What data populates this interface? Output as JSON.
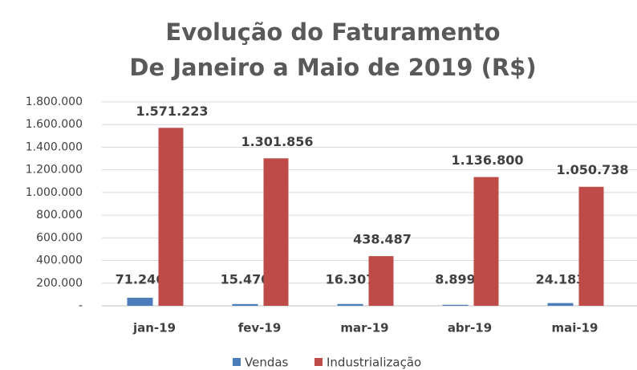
{
  "chart_data": {
    "type": "bar",
    "title": [
      "Evolução do Faturamento",
      "De Janeiro a Maio de 2019 (R$)"
    ],
    "categories": [
      "jan-19",
      "fev-19",
      "mar-19",
      "abr-19",
      "mai-19"
    ],
    "series": [
      {
        "name": "Vendas",
        "color": "#4a7ebb",
        "values": [
          71246,
          15470,
          16307,
          8899,
          24183
        ],
        "value_labels": [
          "71.246",
          "15.470",
          "16.307",
          "8.899",
          "24.183"
        ]
      },
      {
        "name": "Industrialização",
        "color": "#be4b48",
        "values": [
          1571223,
          1301856,
          438487,
          1136800,
          1050738
        ],
        "value_labels": [
          "1.571.223",
          "1.301.856",
          "438.487",
          "1.136.800",
          "1.050.738"
        ]
      }
    ],
    "ylim": [
      0,
      1800000
    ],
    "yticks": [
      {
        "value": 0,
        "label": "-"
      },
      {
        "value": 200000,
        "label": "200.000"
      },
      {
        "value": 400000,
        "label": "400.000"
      },
      {
        "value": 600000,
        "label": "600.000"
      },
      {
        "value": 800000,
        "label": "800.000"
      },
      {
        "value": 1000000,
        "label": "1.000.000"
      },
      {
        "value": 1200000,
        "label": "1.200.000"
      },
      {
        "value": 1400000,
        "label": "1.400.000"
      },
      {
        "value": 1600000,
        "label": "1.600.000"
      },
      {
        "value": 1800000,
        "label": "1.800.000"
      }
    ],
    "grid": true,
    "legend": "bottom"
  }
}
